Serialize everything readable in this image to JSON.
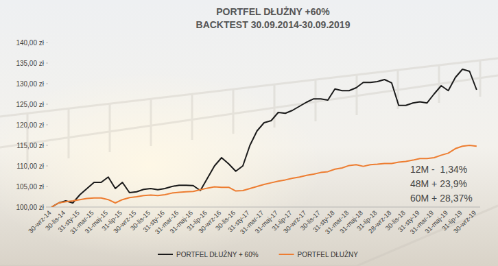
{
  "chart_data": {
    "type": "line",
    "title": "PORTFEL DŁUŻNY +60%",
    "subtitle": "BACKTEST 30.09.2014-30.09.2019",
    "categories": [
      "30-wrz-14",
      null,
      "30-lis-14",
      null,
      "31-sty-15",
      null,
      "31-mar-15",
      null,
      "31-maj-15",
      null,
      "31-lip-15",
      null,
      "30-wrz-15",
      null,
      "30-lis-15",
      null,
      "31-sty-16",
      null,
      "31-mar-16",
      null,
      "31-maj-16",
      null,
      "31-lip-16",
      null,
      "30-wrz-16",
      null,
      "30-lis-16",
      null,
      "31-sty-17",
      null,
      "31-mar-17",
      null,
      "31-maj-17",
      null,
      "31-lip-17",
      null,
      "30-wrz-17",
      null,
      "30-lis-17",
      null,
      "31-sty-18",
      null,
      "31-mar-18",
      null,
      "31-maj-18",
      null,
      "31-lip-18",
      null,
      "28-wrz-18",
      null,
      "30-lis-18",
      null,
      "31-sty-19",
      null,
      "31-mar-19",
      null,
      "31-maj-19",
      null,
      "31-lip-19",
      null,
      "30-wrz-19"
    ],
    "series": [
      {
        "name": "PORTFEL DŁUŻNY + 60%",
        "color": "#1a1a1a",
        "values": [
          100,
          101,
          101.5,
          101,
          103,
          104.5,
          106,
          106,
          107.3,
          104.5,
          106,
          103.5,
          103.7,
          104.3,
          104.5,
          104.2,
          104.5,
          105,
          105.3,
          105.3,
          105.2,
          104,
          107,
          110,
          112,
          110.5,
          108.7,
          110,
          115,
          118.5,
          120.5,
          121,
          123,
          122.8,
          123.5,
          124.5,
          125.5,
          126.3,
          126.3,
          126,
          128.7,
          128.3,
          128.3,
          129,
          130.3,
          130.3,
          130.5,
          131,
          130.2,
          124.7,
          124.7,
          125.3,
          125.6,
          125.3,
          127.5,
          129.5,
          128.3,
          131.5,
          133.5,
          133,
          128.5
        ]
      },
      {
        "name": "PORTFEL DŁUŻNY",
        "color": "#ed7d31",
        "values": [
          100,
          101,
          101.3,
          101.5,
          101.8,
          102.1,
          102.2,
          102.2,
          101.8,
          101,
          101.8,
          102.3,
          102.5,
          102.8,
          102.9,
          102.8,
          103,
          103.4,
          103.6,
          103.7,
          103.8,
          104.2,
          104.6,
          104.9,
          104.8,
          104.8,
          103.9,
          104,
          104.5,
          105,
          105.5,
          105.9,
          106.3,
          106.6,
          107,
          107.3,
          107.7,
          108,
          108.4,
          108.6,
          109.2,
          109.5,
          110.1,
          110.3,
          109.9,
          110.3,
          110.4,
          110.6,
          110.6,
          110.9,
          111.1,
          111.4,
          111.8,
          111.8,
          112,
          112.6,
          113.1,
          114.2,
          114.8,
          115,
          114.8
        ]
      }
    ],
    "ylim": [
      100,
      140
    ],
    "yticks": [
      {
        "value": 100,
        "label": "100,00 zł"
      },
      {
        "value": 105,
        "label": "105,00 zł"
      },
      {
        "value": 110,
        "label": "110,00 zł"
      },
      {
        "value": 115,
        "label": "115,00 zł"
      },
      {
        "value": 120,
        "label": "120,00 zł"
      },
      {
        "value": 125,
        "label": "125,00 zł"
      },
      {
        "value": 130,
        "label": "130,00 zł"
      },
      {
        "value": 135,
        "label": "135,00 zł"
      },
      {
        "value": 140,
        "label": "140,00 zł"
      }
    ],
    "annotations": [
      "12M -  1,34%",
      "48M + 23,9%",
      "60M + 28,37%"
    ],
    "grid": false,
    "legend": "bottom"
  }
}
